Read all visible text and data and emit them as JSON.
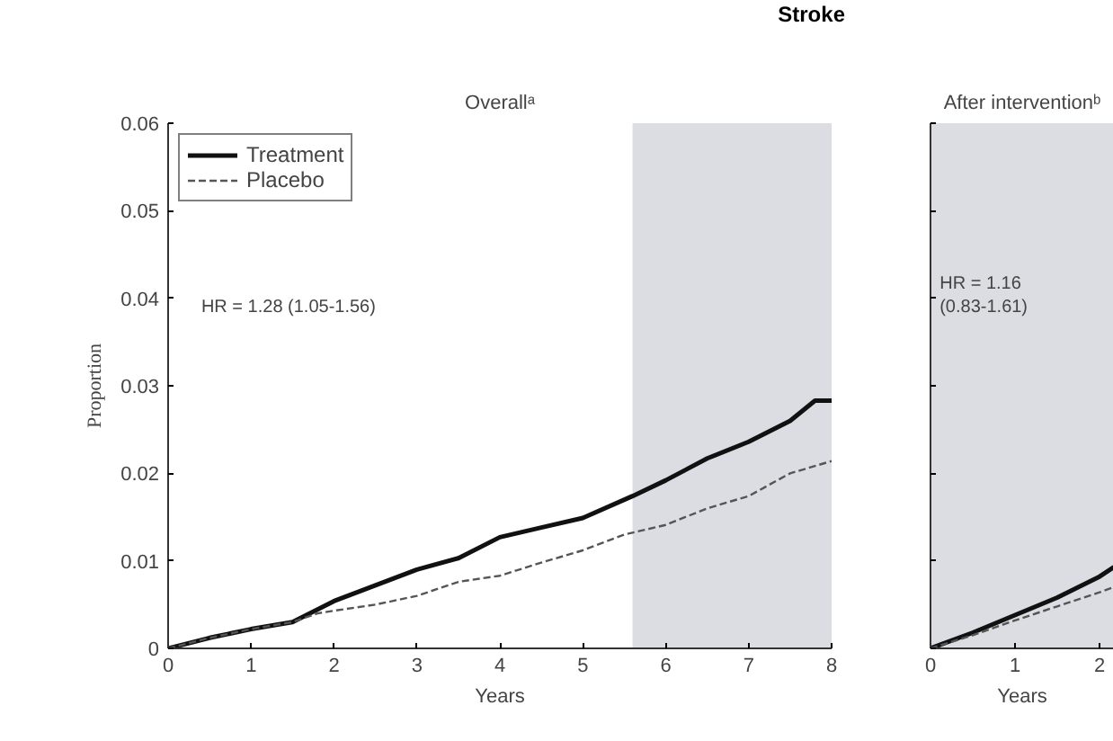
{
  "chart_data": [
    {
      "type": "line",
      "title": "Stroke",
      "subtitle": "Overallᵃ",
      "xlabel": "Years",
      "ylabel": "Proportion",
      "xlim": [
        0,
        8
      ],
      "xticks": [
        0,
        1,
        2,
        3,
        4,
        5,
        6,
        7,
        8
      ],
      "ylim": [
        0,
        0.06
      ],
      "yticks": [
        0,
        0.01,
        0.02,
        0.03,
        0.04,
        0.05,
        0.06
      ],
      "grid": false,
      "legend": "top left",
      "annotations": [
        "HR = 1.28 (1.05-1.56)"
      ],
      "bands": [
        {
          "axis": "x",
          "from": 5.6,
          "to": 8,
          "color": "#dcdde3"
        }
      ],
      "series": [
        {
          "name": "Treatment",
          "color": "#111111",
          "line_style": "solid",
          "x": [
            0,
            0.5,
            1,
            1.5,
            2,
            2.5,
            3,
            3.5,
            4,
            4.5,
            5,
            5.6,
            6,
            6.5,
            7,
            7.5,
            7.8,
            8
          ],
          "values": [
            0,
            0.0012,
            0.0022,
            0.003,
            0.0054,
            0.0072,
            0.009,
            0.0103,
            0.0127,
            0.0138,
            0.0149,
            0.0174,
            0.0192,
            0.0217,
            0.0236,
            0.026,
            0.0283,
            0.0283
          ]
        },
        {
          "name": "Placebo",
          "color": "#555555",
          "line_style": "dashed",
          "x": [
            0,
            0.5,
            1,
            1.5,
            1.8,
            2,
            2.5,
            3,
            3.5,
            4,
            4.5,
            5,
            5.5,
            6,
            6.5,
            7,
            7.5,
            8
          ],
          "values": [
            0,
            0.0012,
            0.0022,
            0.003,
            0.004,
            0.0043,
            0.005,
            0.006,
            0.0076,
            0.0083,
            0.0098,
            0.0112,
            0.013,
            0.0141,
            0.016,
            0.0174,
            0.02,
            0.0214
          ]
        }
      ]
    },
    {
      "type": "line",
      "title": "After interventionᵇ",
      "xlabel": "Years",
      "xlim": [
        0,
        2.17
      ],
      "xticks": [
        0,
        1,
        2
      ],
      "ylim": [
        0,
        0.06
      ],
      "yticks": [
        0,
        0.01,
        0.02,
        0.03,
        0.04,
        0.05,
        0.06
      ],
      "tick_labels": "x",
      "grid": false,
      "annotations": [
        "HR = 1.16 (0.83-1.61)"
      ],
      "bands": [
        {
          "axis": "x",
          "from": 0,
          "to": 2.17,
          "color": "#dcdde3"
        }
      ],
      "series": [
        {
          "color": "#111111",
          "line_style": "solid",
          "x": [
            0,
            0.5,
            1,
            1.5,
            2,
            2.17
          ],
          "values": [
            0,
            0.0018,
            0.0038,
            0.0058,
            0.0082,
            0.0093
          ]
        },
        {
          "color": "#555555",
          "line_style": "dashed",
          "x": [
            0,
            0.5,
            1,
            1.5,
            2,
            2.17
          ],
          "values": [
            0,
            0.0015,
            0.0032,
            0.0048,
            0.0064,
            0.007
          ]
        }
      ]
    }
  ]
}
